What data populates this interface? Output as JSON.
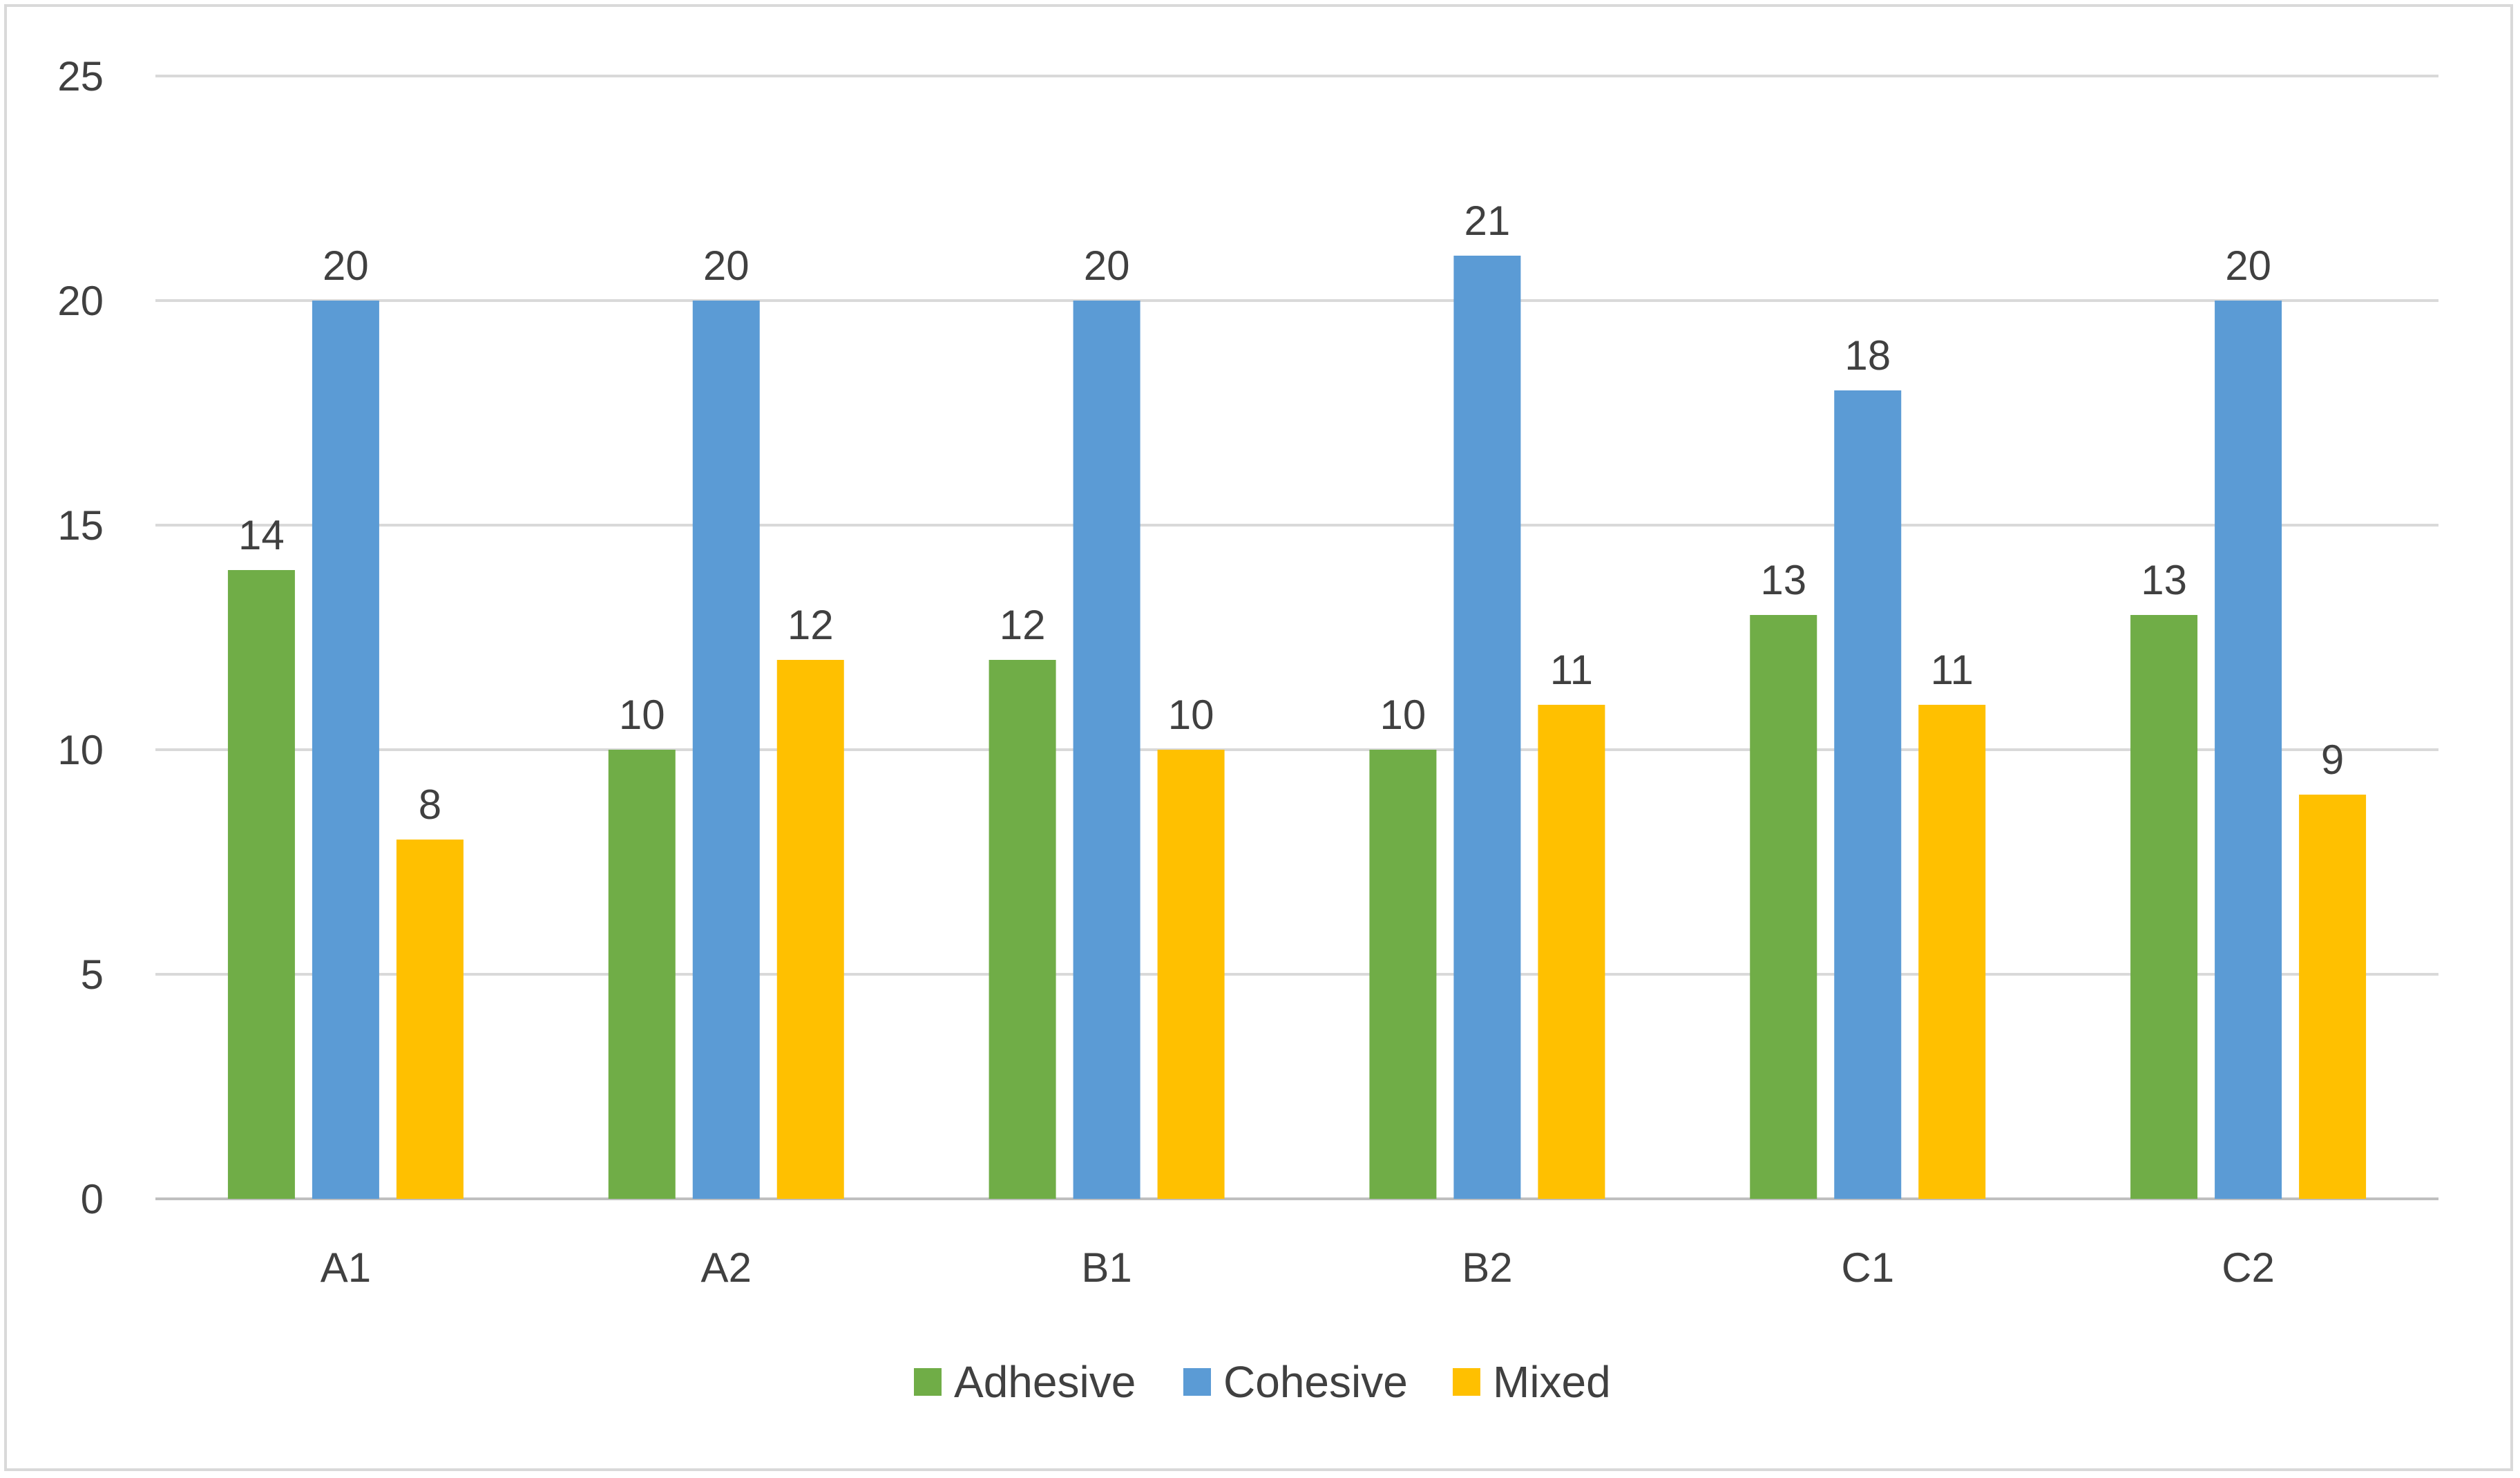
{
  "chart_data": {
    "type": "bar",
    "title": "",
    "xlabel": "",
    "ylabel": "",
    "ylim": [
      0,
      25
    ],
    "yticks": [
      0,
      5,
      10,
      15,
      20,
      25
    ],
    "grid": true,
    "legend_position": "bottom",
    "categories": [
      "A1",
      "A2",
      "B1",
      "B2",
      "C1",
      "C2"
    ],
    "series": [
      {
        "name": "Adhesive",
        "color": "#70AD47",
        "values": [
          14,
          10,
          12,
          10,
          13,
          13
        ]
      },
      {
        "name": "Cohesive",
        "color": "#5B9BD5",
        "values": [
          20,
          20,
          20,
          21,
          18,
          20
        ]
      },
      {
        "name": "Mixed",
        "color": "#FFC000",
        "values": [
          8,
          12,
          10,
          11,
          11,
          9
        ]
      }
    ]
  }
}
